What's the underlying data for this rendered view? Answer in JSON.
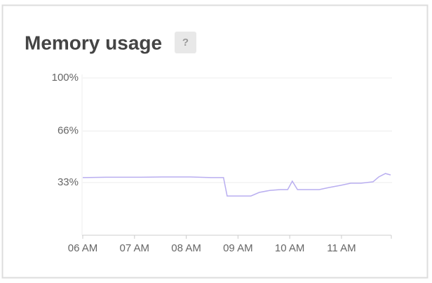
{
  "chart_data": {
    "type": "line",
    "title": "Memory usage",
    "help_label": "?",
    "x": [
      6.0,
      6.45,
      7.13,
      7.53,
      8.08,
      8.48,
      8.72,
      8.79,
      9.25,
      9.41,
      9.62,
      9.82,
      9.96,
      10.05,
      10.15,
      10.57,
      10.77,
      10.98,
      11.18,
      11.38,
      11.61,
      11.72,
      11.85,
      11.95
    ],
    "values": [
      36.2,
      36.4,
      36.4,
      36.6,
      36.6,
      36.2,
      36.2,
      24.4,
      24.4,
      26.7,
      28.0,
      28.5,
      28.5,
      33.9,
      28.5,
      28.5,
      29.9,
      31.2,
      32.6,
      32.6,
      33.5,
      36.6,
      38.8,
      37.9
    ],
    "color": "#b9aef0",
    "xlim": [
      6,
      11.95
    ],
    "xticks": [
      {
        "value": 6,
        "label": "06 AM"
      },
      {
        "value": 7,
        "label": "07 AM"
      },
      {
        "value": 8,
        "label": "08 AM"
      },
      {
        "value": 9,
        "label": "09 AM"
      },
      {
        "value": 10,
        "label": "10 AM"
      },
      {
        "value": 11,
        "label": "11 AM"
      }
    ],
    "ylim": [
      0,
      100
    ],
    "yticks": [
      {
        "value": 33,
        "label": "33%"
      },
      {
        "value": 66,
        "label": "66%"
      },
      {
        "value": 100,
        "label": "100%"
      }
    ],
    "grid": true
  }
}
